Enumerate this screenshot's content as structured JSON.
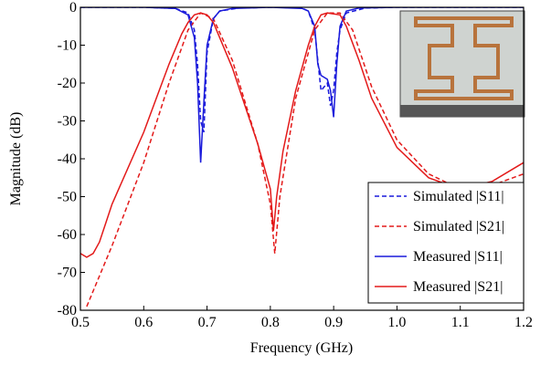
{
  "chart_data": {
    "type": "line",
    "xlabel": "Frequency (GHz)",
    "ylabel": "Magnitude (dB)",
    "xlim": [
      0.5,
      1.2
    ],
    "ylim": [
      -80,
      0
    ],
    "xticks": [
      0.5,
      0.6,
      0.7,
      0.8,
      0.9,
      {
        "value": 1,
        "label": "1.0"
      },
      1.1,
      1.2
    ],
    "yticks": [
      0,
      -10,
      -20,
      -30,
      -40,
      -50,
      -60,
      -70,
      -80
    ],
    "legend": "lower right",
    "series": [
      {
        "name": "Simulated |S11|",
        "color": "#1a1adb",
        "dash": true,
        "x": [
          0.5,
          0.6,
          0.65,
          0.67,
          0.68,
          0.685,
          0.69,
          0.695,
          0.7,
          0.71,
          0.72,
          0.75,
          0.8,
          0.85,
          0.86,
          0.87,
          0.875,
          0.88,
          0.885,
          0.89,
          0.895,
          0.9,
          0.905,
          0.91,
          0.92,
          0.95,
          1.0,
          1.1,
          1.2
        ],
        "values": [
          0,
          0,
          -0.3,
          -1.5,
          -6,
          -15,
          -30,
          -33,
          -12,
          -3,
          -1,
          -0.2,
          0,
          -0.2,
          -1,
          -6,
          -14,
          -22,
          -21,
          -20,
          -26,
          -22,
          -12,
          -6,
          -1.5,
          -0.2,
          0,
          0,
          0
        ]
      },
      {
        "name": "Simulated |S21|",
        "color": "#e31a1a",
        "dash": true,
        "x": [
          0.51,
          0.55,
          0.6,
          0.64,
          0.67,
          0.69,
          0.71,
          0.74,
          0.78,
          0.8,
          0.807,
          0.815,
          0.84,
          0.87,
          0.89,
          0.91,
          0.93,
          0.96,
          1.0,
          1.05,
          1.1,
          1.15,
          1.2
        ],
        "values": [
          -79,
          -63,
          -41,
          -20,
          -6,
          -1.5,
          -3,
          -14,
          -36,
          -52,
          -65,
          -50,
          -24,
          -6,
          -1.5,
          -1.5,
          -6,
          -21,
          -35,
          -44,
          -48,
          -47,
          -44
        ]
      },
      {
        "name": "Measured |S11|",
        "color": "#1a1adb",
        "dash": false,
        "x": [
          0.5,
          0.6,
          0.65,
          0.67,
          0.68,
          0.685,
          0.69,
          0.695,
          0.7,
          0.71,
          0.72,
          0.74,
          0.8,
          0.85,
          0.86,
          0.87,
          0.875,
          0.88,
          0.89,
          0.895,
          0.9,
          0.905,
          0.91,
          0.92,
          0.94,
          1.0,
          1.1,
          1.2
        ],
        "values": [
          0,
          0,
          -0.3,
          -2,
          -8,
          -20,
          -41,
          -25,
          -10,
          -3,
          -1,
          -0.3,
          0,
          -0.3,
          -1,
          -5,
          -15,
          -18,
          -19,
          -22,
          -29,
          -15,
          -5,
          -1,
          -0.2,
          0,
          0,
          0
        ]
      },
      {
        "name": "Measured |S21|",
        "color": "#e31a1a",
        "dash": false,
        "x": [
          0.5,
          0.51,
          0.52,
          0.53,
          0.54,
          0.55,
          0.6,
          0.62,
          0.64,
          0.66,
          0.67,
          0.68,
          0.69,
          0.7,
          0.71,
          0.72,
          0.74,
          0.76,
          0.78,
          0.8,
          0.805,
          0.81,
          0.82,
          0.84,
          0.86,
          0.87,
          0.88,
          0.89,
          0.91,
          0.92,
          0.94,
          0.96,
          1.0,
          1.05,
          1.1,
          1.15,
          1.2
        ],
        "values": [
          -65,
          -66,
          -65,
          -62,
          -57,
          -52,
          -33,
          -24,
          -15,
          -7,
          -4,
          -2,
          -1.5,
          -2,
          -4,
          -8,
          -16,
          -26,
          -36,
          -48,
          -59,
          -50,
          -38,
          -22,
          -10,
          -5,
          -2,
          -1.5,
          -2,
          -5,
          -14,
          -24,
          -37,
          -45,
          -48,
          -46,
          -41
        ]
      }
    ]
  }
}
